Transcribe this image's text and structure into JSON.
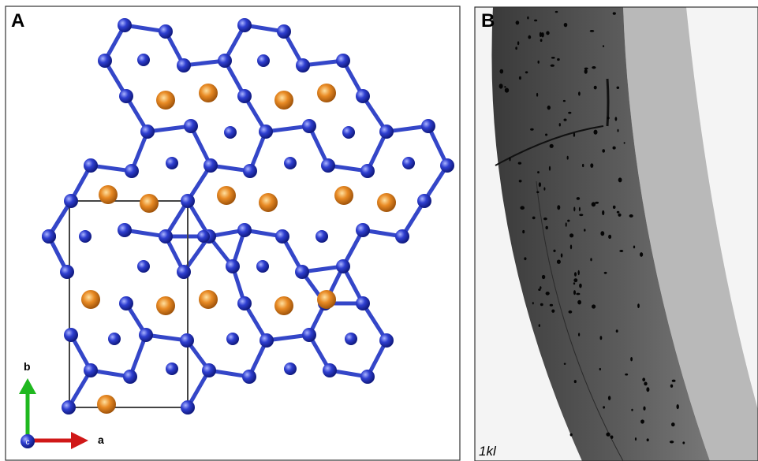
{
  "panels": [
    {
      "label": "A",
      "axes": {
        "b": "b",
        "a": "a",
        "c": "c"
      }
    },
    {
      "label": "B",
      "caption": "1kl"
    }
  ]
}
